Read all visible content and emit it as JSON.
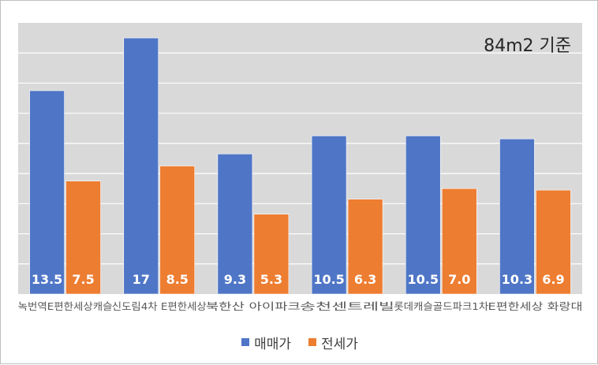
{
  "chart_data": {
    "type": "bar",
    "annotation": "84m2 기준",
    "categories": [
      "녹번역E편한세상캐슬",
      "신도림4차 E편한세상",
      "북한산 아이파크",
      "송천센트레빌",
      "롯데캐슬골드파크1차",
      "E편한세상 화랑대"
    ],
    "series": [
      {
        "name": "매매가",
        "color": "#4f76c6",
        "values": [
          13.5,
          17,
          9.3,
          10.5,
          10.5,
          10.3
        ],
        "labels": [
          "13.5",
          "17",
          "9.3",
          "10.5",
          "10.5",
          "10.3"
        ]
      },
      {
        "name": "전세가",
        "color": "#ed7d31",
        "values": [
          7.5,
          8.5,
          5.3,
          6.3,
          7.0,
          6.9
        ],
        "labels": [
          "7.5",
          "8.5",
          "5.3",
          "6.3",
          "7.0",
          "6.9"
        ]
      }
    ],
    "ylim": [
      0,
      18
    ],
    "grid": true,
    "legend_position": "bottom",
    "data_labels": "inside-base",
    "label_color": "#ffffff",
    "background": "#ffffff",
    "plot_background": "#d9d9d9",
    "grid_color": "#ffffff"
  }
}
